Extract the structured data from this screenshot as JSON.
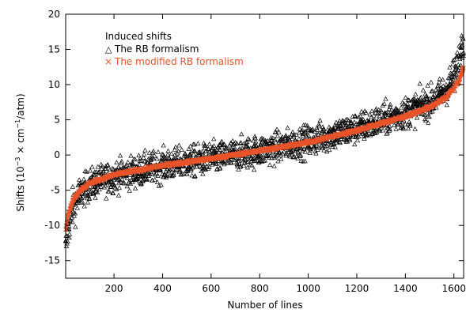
{
  "chart_data": {
    "type": "scatter",
    "title": "",
    "xlabel": "Number of lines",
    "ylabel": {
      "pre": "Shifts (10",
      "sup1": "−3",
      "mid": " × cm",
      "sup2": "−1",
      "post": "/atm)"
    },
    "xlim": [
      1,
      1640
    ],
    "ylim": [
      -17.5,
      20
    ],
    "xticks": [
      200,
      400,
      600,
      800,
      1000,
      1200,
      1400,
      1600
    ],
    "yticks": [
      -15,
      -10,
      -5,
      0,
      5,
      10,
      15,
      20
    ],
    "legend": {
      "placement": "top-left",
      "title": "Induced shifts"
    },
    "n_points": 1640,
    "series": [
      {
        "name": "The RB formalism",
        "marker": "triangle",
        "color": "#000000",
        "legend_symbol": "△",
        "trend": [
          [
            1,
            -13.5
          ],
          [
            10,
            -10.5
          ],
          [
            30,
            -7.5
          ],
          [
            60,
            -5.5
          ],
          [
            100,
            -4.2
          ],
          [
            200,
            -3.0
          ],
          [
            400,
            -1.5
          ],
          [
            600,
            -0.5
          ],
          [
            800,
            0.6
          ],
          [
            1000,
            2.0
          ],
          [
            1200,
            3.8
          ],
          [
            1400,
            6.0
          ],
          [
            1500,
            7.5
          ],
          [
            1560,
            9.0
          ],
          [
            1600,
            11.0
          ],
          [
            1620,
            13.0
          ],
          [
            1640,
            17.0
          ]
        ],
        "spread_note": "scatter around trend, up to about ±3"
      },
      {
        "name": "The modified RB formalism",
        "marker": "x",
        "color": "#e8542a",
        "legend_symbol": "×",
        "trend": [
          [
            1,
            -10.5
          ],
          [
            10,
            -8.5
          ],
          [
            30,
            -6.5
          ],
          [
            60,
            -5.0
          ],
          [
            100,
            -4.0
          ],
          [
            200,
            -2.8
          ],
          [
            400,
            -1.5
          ],
          [
            600,
            -0.5
          ],
          [
            800,
            0.6
          ],
          [
            1000,
            1.8
          ],
          [
            1200,
            3.5
          ],
          [
            1400,
            5.5
          ],
          [
            1500,
            6.8
          ],
          [
            1560,
            8.0
          ],
          [
            1600,
            9.5
          ],
          [
            1620,
            10.5
          ],
          [
            1640,
            12.5
          ]
        ]
      }
    ]
  }
}
